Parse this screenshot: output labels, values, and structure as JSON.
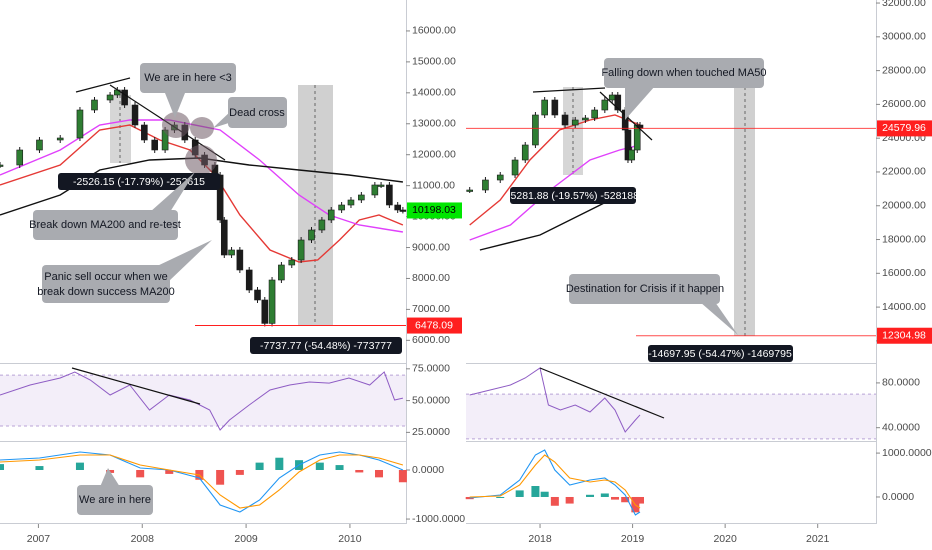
{
  "chart_data": [
    {
      "type": "candlestick",
      "xlim": [
        2006.63,
        2010.54
      ],
      "xticks": [
        2007,
        2008,
        2009,
        2010
      ],
      "up_color": "#2e7d32",
      "down_color": "#1b1b1b",
      "price": {
        "ylim": [
          5300,
          17000
        ],
        "yticks": [
          {
            "value": 6000,
            "label": "6000.00"
          },
          {
            "value": 7000,
            "label": "7000.00"
          },
          {
            "value": 8000,
            "label": "8000.00"
          },
          {
            "value": 9000,
            "label": "9000.00"
          },
          {
            "value": 10000,
            "label": "10000.00"
          },
          {
            "value": 11000,
            "label": "11000.00"
          },
          {
            "value": 12000,
            "label": "12000.00"
          },
          {
            "value": 13000,
            "label": "13000.00"
          },
          {
            "value": 14000,
            "label": "14000.00"
          },
          {
            "value": 15000,
            "label": "15000.00"
          },
          {
            "value": 16000,
            "label": "16000.00"
          }
        ],
        "x": [
          2006.63,
          2006.82,
          2007.01,
          2007.21,
          2007.4,
          2007.54,
          2007.69,
          2007.76,
          2007.83,
          2007.93,
          2008.02,
          2008.12,
          2008.22,
          2008.31,
          2008.41,
          2008.51,
          2008.6,
          2008.7,
          2008.75,
          2008.79,
          2008.86,
          2008.94,
          2009.03,
          2009.11,
          2009.18,
          2009.25,
          2009.34,
          2009.44,
          2009.53,
          2009.63,
          2009.73,
          2009.82,
          2009.92,
          2010.01,
          2010.11,
          2010.24,
          2010.3,
          2010.38,
          2010.46,
          2010.51
        ],
        "values": [
          11667,
          12152,
          12475,
          12540,
          13445,
          13768,
          13930,
          14091,
          13606,
          12960,
          12475,
          12152,
          12798,
          12960,
          12475,
          11990,
          11667,
          11344,
          9890,
          8758,
          8920,
          8274,
          7627,
          7304,
          6547,
          7950,
          8435,
          8597,
          9243,
          9566,
          9890,
          10213,
          10374,
          10536,
          10698,
          11021,
          11021,
          10374,
          10213,
          10198
        ],
        "moving_averages": [
          {
            "color": "#e53935",
            "x": [
              2006.63,
              2007.21,
              2007.59,
              2007.88,
              2008.17,
              2008.46,
              2008.7,
              2008.94,
              2009.23,
              2009.51,
              2009.69,
              2009.9,
              2010.09,
              2010.28,
              2010.51
            ],
            "values": [
              11021,
              11667,
              12798,
              12960,
              12475,
              12152,
              11344,
              10051,
              8920,
              8532,
              8597,
              9243,
              9890,
              10051,
              9728
            ]
          },
          {
            "color": "#e040fb",
            "x": [
              2006.63,
              2007.21,
              2007.59,
              2007.88,
              2008.26,
              2008.75,
              2009.13,
              2009.51,
              2009.8,
              2010.09,
              2010.51
            ],
            "values": [
              11344,
              12152,
              12960,
              13122,
              13122,
              12798,
              11829,
              10698,
              10051,
              9728,
              9502
            ]
          },
          {
            "color": "#111111",
            "x": [
              2006.63,
              2007.21,
              2007.59,
              2008.07,
              2008.55,
              2009.03,
              2009.51,
              2009.99,
              2010.51
            ],
            "values": [
              10051,
              10698,
              11506,
              11829,
              11894,
              11667,
              11506,
              11344,
              11118
            ]
          }
        ]
      },
      "price_labels": [
        {
          "value": 10198.03,
          "color": "#00e600",
          "text_color": "#000000"
        },
        {
          "value": 6478.09,
          "color": "#ff1f1f",
          "text_color": "#ffffff"
        }
      ],
      "rsi": {
        "ylim": [
          19,
          78
        ],
        "yticks": [
          {
            "value": 25,
            "label": "25.0000"
          },
          {
            "value": 50,
            "label": "50.0000"
          },
          {
            "value": 75,
            "label": "75.0000"
          }
        ],
        "bands": [
          30,
          70
        ],
        "color": "#8e5cc4",
        "x": [
          2006.63,
          2006.92,
          2007.21,
          2007.35,
          2007.5,
          2007.69,
          2007.88,
          2008.07,
          2008.26,
          2008.46,
          2008.65,
          2008.75,
          2008.84,
          2009.03,
          2009.23,
          2009.42,
          2009.61,
          2009.8,
          2009.99,
          2010.19,
          2010.33,
          2010.43,
          2010.51
        ],
        "values": [
          54.4,
          62.3,
          67.8,
          72.5,
          66.2,
          54.4,
          62.3,
          42.6,
          54.4,
          50.5,
          42.6,
          26.9,
          34.7,
          46.5,
          58.3,
          62.3,
          64.6,
          63.8,
          67.8,
          62.3,
          72.5,
          50.5,
          52.0
        ]
      },
      "macd": {
        "ylim": [
          -1060,
          550
        ],
        "yticks": [
          {
            "value": -1000,
            "label": "-1000.0000"
          },
          {
            "value": 0,
            "label": "0.0000"
          }
        ],
        "macd_color": "#2196f3",
        "signal_color": "#ff9800",
        "up_color": "#26a69a",
        "down_color": "#ef5350",
        "x": [
          2006.63,
          2007.01,
          2007.4,
          2007.69,
          2007.98,
          2008.26,
          2008.55,
          2008.75,
          2008.94,
          2009.13,
          2009.32,
          2009.51,
          2009.71,
          2009.9,
          2010.09,
          2010.28,
          2010.51
        ],
        "macd": [
          204,
          244,
          367,
          305,
          40,
          0,
          -163,
          -714,
          -856,
          -612,
          -163,
          102,
          305,
          367,
          305,
          204,
          0
        ],
        "signal": [
          163,
          204,
          305,
          305,
          102,
          0,
          -102,
          -510,
          -775,
          -714,
          -408,
          -41,
          204,
          305,
          305,
          244,
          102
        ],
        "histogram": [
          120,
          80,
          150,
          -60,
          -150,
          -80,
          -200,
          -300,
          -100,
          150,
          250,
          200,
          150,
          100,
          -50,
          -150,
          -250
        ]
      },
      "annotations": [
        "We are in here <3",
        "Dead cross",
        "Break down MA200 and re-test",
        [
          "Panic sell occur when we",
          "break down success MA200"
        ],
        "We are in here"
      ],
      "measurements": [
        "-2526.15 (-17.79%) -252615",
        "-7737.77 (-54.48%) -773777"
      ]
    },
    {
      "type": "candlestick",
      "xlim": [
        2017.2,
        2021.63
      ],
      "xticks": [
        2018,
        2019,
        2020,
        2021
      ],
      "up_color": "#2e7d32",
      "down_color": "#1b1b1b",
      "price": {
        "ylim": [
          10750,
          32180
        ],
        "yticks": [
          {
            "value": 12000,
            "label": "12000.00"
          },
          {
            "value": 14000,
            "label": "14000.00"
          },
          {
            "value": 16000,
            "label": "16000.00"
          },
          {
            "value": 18000,
            "label": "18000.00"
          },
          {
            "value": 20000,
            "label": "20000.00"
          },
          {
            "value": 22000,
            "label": "22000.00"
          },
          {
            "value": 24000,
            "label": "24000.00"
          },
          {
            "value": 26000,
            "label": "26000.00"
          },
          {
            "value": 28000,
            "label": "28000.00"
          },
          {
            "value": 30000,
            "label": "30000.00"
          },
          {
            "value": 32000,
            "label": "32000.00"
          }
        ],
        "x": [
          2017.24,
          2017.41,
          2017.57,
          2017.73,
          2017.84,
          2017.95,
          2018.05,
          2018.16,
          2018.27,
          2018.38,
          2018.49,
          2018.59,
          2018.7,
          2018.78,
          2018.84,
          2018.92,
          2018.95,
          2018.99,
          2019.05,
          2019.08
        ],
        "values": [
          20932,
          21524,
          21820,
          22708,
          23596,
          25372,
          26260,
          25372,
          24780,
          25076,
          25194,
          25668,
          26260,
          26556,
          25668,
          24484,
          22708,
          23300,
          24780,
          24580
        ],
        "moving_averages": [
          {
            "color": "#e53935",
            "x": [
              2017.24,
              2017.57,
              2017.89,
              2018.21,
              2018.54,
              2018.81,
              2019.08
            ],
            "values": [
              18860,
              20340,
              22708,
              24484,
              25076,
              25372,
              24780
            ]
          },
          {
            "color": "#e040fb",
            "x": [
              2017.24,
              2017.68,
              2018.11,
              2018.54,
              2018.86,
              2019.08
            ],
            "values": [
              17972,
              18860,
              20932,
              22708,
              23300,
              23596
            ]
          },
          {
            "color": "#111111",
            "x": [
              2017.35,
              2018.0,
              2018.65,
              2018.97
            ],
            "values": [
              17380,
              18268,
              20044,
              20932
            ]
          }
        ]
      },
      "price_labels": [
        {
          "value": 24579.96,
          "color": "#ff1f1f",
          "text_color": "#ffffff"
        },
        {
          "value": 12304.98,
          "color": "#ff1f1f",
          "text_color": "#ffffff"
        }
      ],
      "rsi": {
        "ylim": [
          29,
          96
        ],
        "yticks": [
          {
            "value": 40,
            "label": "40.0000"
          },
          {
            "value": 80,
            "label": "80.0000"
          }
        ],
        "bands": [
          30,
          70
        ],
        "color": "#8e5cc4",
        "x": [
          2017.24,
          2017.46,
          2017.68,
          2017.84,
          2018.0,
          2018.09,
          2018.22,
          2018.38,
          2018.54,
          2018.7,
          2018.81,
          2018.92,
          2019.03,
          2019.08
        ],
        "values": [
          69.2,
          73.7,
          78.1,
          84.4,
          93.3,
          60.3,
          55.8,
          60.3,
          54.0,
          66.5,
          55.8,
          36.2,
          46.9,
          51.4
        ]
      },
      "macd": {
        "ylim": [
          -570,
          1230
        ],
        "yticks": [
          {
            "value": 0,
            "label": "0.0000"
          },
          {
            "value": 1000,
            "label": "1000.0000"
          }
        ],
        "macd_color": "#2196f3",
        "signal_color": "#ff9800",
        "up_color": "#26a69a",
        "down_color": "#ef5350",
        "x": [
          2017.24,
          2017.57,
          2017.78,
          2017.95,
          2018.05,
          2018.16,
          2018.32,
          2018.54,
          2018.7,
          2018.81,
          2018.92,
          2019.03,
          2019.08
        ],
        "macd": [
          -23,
          45,
          387,
          957,
          1071,
          615,
          273,
          387,
          433,
          273,
          45,
          -410,
          -342
        ],
        "signal": [
          0,
          23,
          273,
          729,
          957,
          797,
          433,
          342,
          387,
          342,
          159,
          -182,
          -251
        ],
        "histogram": [
          -50,
          0,
          150,
          250,
          120,
          -200,
          -150,
          50,
          80,
          -60,
          -120,
          -350,
          -150
        ]
      },
      "annotations": [
        "Falling down when touched MA50",
        "Destination for Crisis if it happen"
      ],
      "measurements": [
        "-5281.88 (-19.57%) -528188",
        "-14697.95 (-54.47%) -1469795"
      ]
    }
  ]
}
